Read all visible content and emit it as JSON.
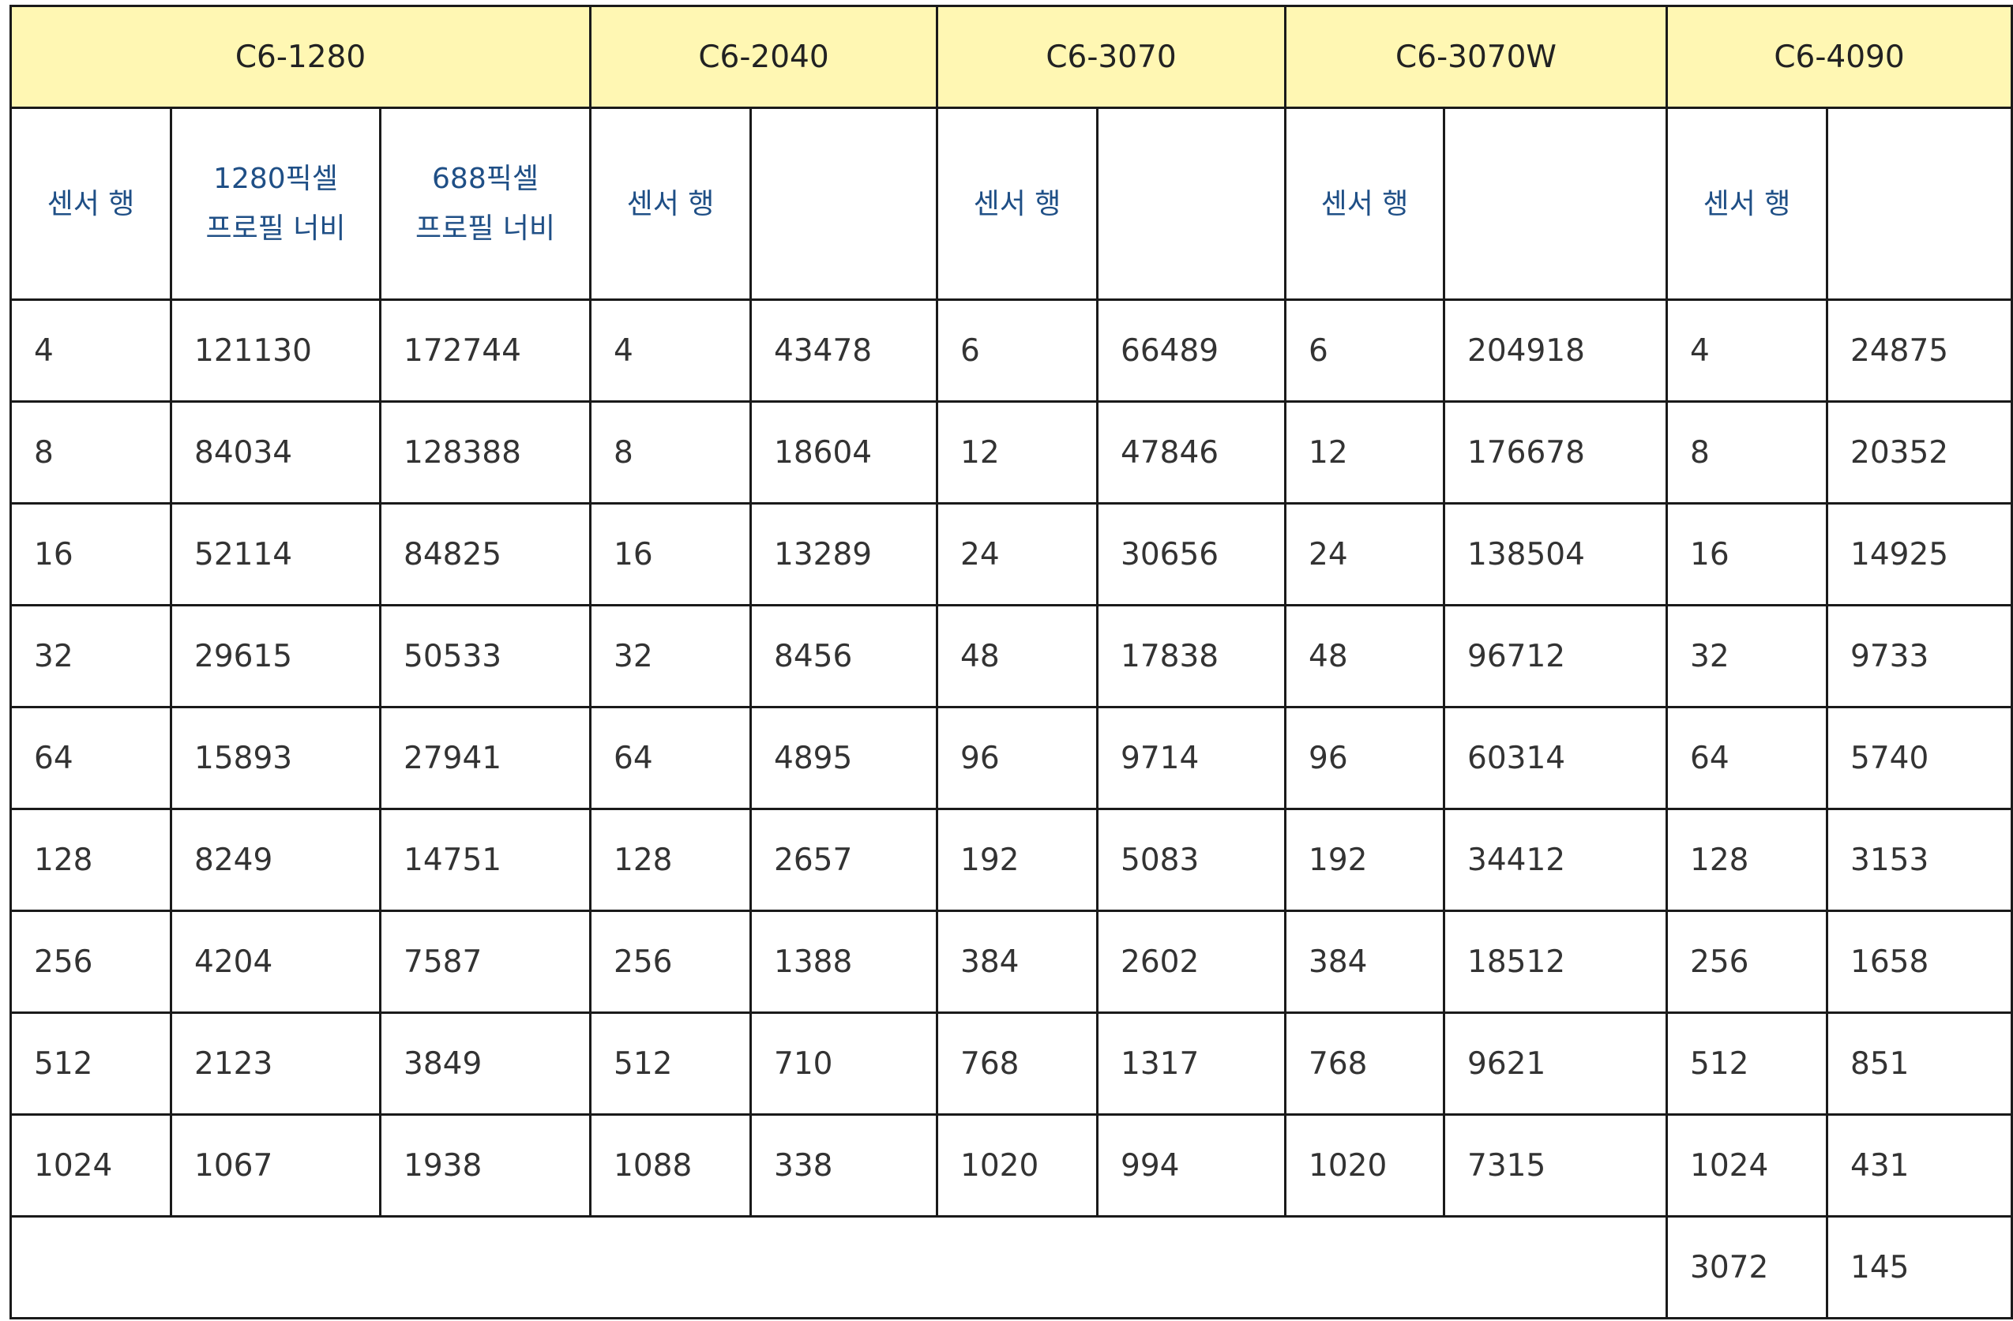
{
  "models": [
    "C6-1280",
    "C6-2040",
    "C6-3070",
    "C6-3070W",
    "C6-4090"
  ],
  "subheaders": {
    "c1280_rows": "센서 행",
    "c1280_w1280_line1": "1280픽셀",
    "c1280_w1280_line2": "프로필 너비",
    "c1280_w688_line1": "688픽셀",
    "c1280_w688_line2": "프로필 너비",
    "c2040_rows": "센서 행",
    "c3070_rows": "센서 행",
    "c3070w_rows": "센서 행",
    "c4090_rows": "센서 행"
  },
  "rows": [
    [
      "4",
      "121130",
      "172744",
      "4",
      "43478",
      "6",
      "66489",
      "6",
      "204918",
      "4",
      "24875"
    ],
    [
      "8",
      "84034",
      "128388",
      "8",
      "18604",
      "12",
      "47846",
      "12",
      "176678",
      "8",
      "20352"
    ],
    [
      "16",
      "52114",
      "84825",
      "16",
      "13289",
      "24",
      "30656",
      "24",
      "138504",
      "16",
      "14925"
    ],
    [
      "32",
      "29615",
      "50533",
      "32",
      "8456",
      "48",
      "17838",
      "48",
      "96712",
      "32",
      "9733"
    ],
    [
      "64",
      "15893",
      "27941",
      "64",
      "4895",
      "96",
      "9714",
      "96",
      "60314",
      "64",
      "5740"
    ],
    [
      "128",
      "8249",
      "14751",
      "128",
      "2657",
      "192",
      "5083",
      "192",
      "34412",
      "128",
      "3153"
    ],
    [
      "256",
      "4204",
      "7587",
      "256",
      "1388",
      "384",
      "2602",
      "384",
      "18512",
      "256",
      "1658"
    ],
    [
      "512",
      "2123",
      "3849",
      "512",
      "710",
      "768",
      "1317",
      "768",
      "9621",
      "512",
      "851"
    ],
    [
      "1024",
      "1067",
      "1938",
      "1088",
      "338",
      "1020",
      "994",
      "1020",
      "7315",
      "1024",
      "431"
    ]
  ],
  "last_row": [
    "3072",
    "145"
  ],
  "colors": {
    "header_bg": "#fff7b3",
    "subheader_text": "#1f4f86",
    "border": "#1a1a1a"
  }
}
